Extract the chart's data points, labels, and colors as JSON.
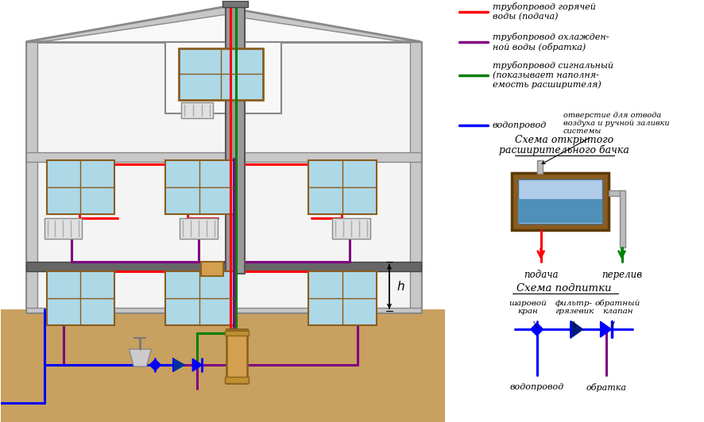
{
  "bg": "#ffffff",
  "legend": [
    {
      "color": "#ff0000",
      "label": "трубопровод горячей\nводы (подача)"
    },
    {
      "color": "#800080",
      "label": "трубопровод охлажден-\nной воды (обратка)"
    },
    {
      "color": "#008000",
      "label": "трубопровод сигнальный\n(показывает наполня-\nемость расширителя)"
    },
    {
      "color": "#0000ff",
      "label": "водопровод"
    }
  ],
  "text": {
    "schema_open_line1": "Схема открытого",
    "schema_open_line2": "расширительного бачка",
    "hole_ann": "отверстие для отвода\nвоздуха и ручной заливки\nсистемы",
    "podacha": "подача",
    "pereli": "перелив",
    "schema_feed": "Схема подпитки",
    "ball": "шаровой\nкран",
    "filter": "фильтр-\nгрязевик",
    "check": "обратный\nклапан",
    "vodo": "водопровод",
    "obratka": "обратка",
    "h": "h"
  },
  "colors": {
    "red": "#ff0000",
    "purple": "#800080",
    "green": "#008000",
    "blue": "#0000ff",
    "wall": "#c8c8c8",
    "wall_dark": "#888888",
    "soil": "#c8a060",
    "win_blue": "#add8e6",
    "win_frame": "#8b5c1e",
    "boiler": "#d4a050",
    "boiler_edge": "#8b6520",
    "tank_brown": "#8b5c1e",
    "tank_edge": "#5c3a0a",
    "water_light": "#b0cce8",
    "water_dark": "#5090b8",
    "pipe_gray": "#aaaaaa"
  }
}
